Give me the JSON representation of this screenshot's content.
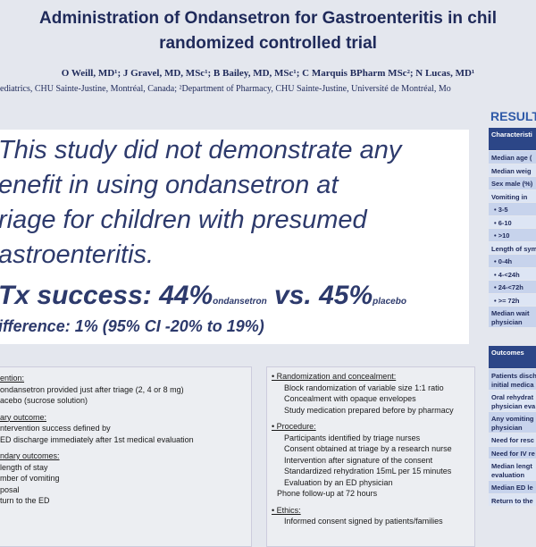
{
  "header": {
    "title_lines": [
      "Administration of Ondansetron for Gastroenteritis in chil",
      "randomized controlled trial"
    ],
    "authors": "O Weill, MD¹; J Gravel, MD, MSc¹; B Bailey, MD, MSc¹; C Marquis  BPharm MSc²; N Lucas, MD¹",
    "affiliations": "ediatrics, CHU Sainte-Justine, Montréal, Canada; ²Department of Pharmacy, CHU Sainte-Justine, Université de Montréal, Mo"
  },
  "conclusion": {
    "lines": [
      "This study did not demonstrate any",
      "enefit in using ondansetron at",
      "riage for children with presumed",
      "astroenteritis."
    ],
    "success": {
      "prefix": "Tx success: 44%",
      "sub1": "ondansetron",
      "mid": " vs. 45%",
      "sub2": "placebo"
    },
    "difference": "ifference: 1% (95% CI -20% to 19%)"
  },
  "methods_left": [
    {
      "text": "ention:",
      "kind": "heading"
    },
    {
      "text": "ondansetron provided just after triage (2, 4 or 8 mg)",
      "kind": "item"
    },
    {
      "text": "acebo (sucrose solution)",
      "kind": "item"
    },
    {
      "text": "ary outcome:",
      "kind": "heading"
    },
    {
      "text": "ntervention success defined by",
      "kind": "item"
    },
    {
      "text": "ED discharge immediately after 1st medical evaluation",
      "kind": "item"
    },
    {
      "text": "ndary outcomes:",
      "kind": "heading"
    },
    {
      "text": "length of stay",
      "kind": "item"
    },
    {
      "text": "mber of vomiting",
      "kind": "item"
    },
    {
      "text": "posal",
      "kind": "item"
    },
    {
      "text": "turn to the ED",
      "kind": "item"
    }
  ],
  "methods_middle": [
    {
      "text": "• Randomization and concealment:",
      "kind": "heading"
    },
    {
      "text": "Block randomization of variable size 1:1 ratio",
      "kind": "subitem"
    },
    {
      "text": "Concealment with opaque envelopes",
      "kind": "subitem"
    },
    {
      "text": "Study medication prepared before by pharmacy",
      "kind": "subitem"
    },
    {
      "text": "• Procedure:",
      "kind": "heading"
    },
    {
      "text": "Participants identified by triage nurses",
      "kind": "subitem"
    },
    {
      "text": "Consent obtained at triage by a research nurse",
      "kind": "subitem"
    },
    {
      "text": "Intervention after signature of the consent",
      "kind": "subitem"
    },
    {
      "text": "Standardized rehydration 15mL per 15 minutes",
      "kind": "subitem"
    },
    {
      "text": "Evaluation by an ED physician",
      "kind": "subitem"
    },
    {
      "text": "Phone follow-up at 72 hours",
      "kind": "item"
    },
    {
      "text": "• Ethics:",
      "kind": "heading"
    },
    {
      "text": "Informed consent signed by patients/families",
      "kind": "subitem"
    }
  ],
  "results": {
    "heading": "RESULT",
    "characteristics": [
      {
        "lines": [
          "Characteristi"
        ],
        "kind": "header"
      },
      {
        "lines": [
          "Median age ("
        ],
        "kind": "row"
      },
      {
        "lines": [
          "Median weig"
        ],
        "kind": "row"
      },
      {
        "lines": [
          "Sex male (%)"
        ],
        "kind": "row"
      },
      {
        "lines": [
          "Vomiting in"
        ],
        "kind": "row"
      },
      {
        "lines": [
          "• 3-5"
        ],
        "kind": "row"
      },
      {
        "lines": [
          "• 6-10"
        ],
        "kind": "row"
      },
      {
        "lines": [
          "• >10"
        ],
        "kind": "row"
      },
      {
        "lines": [
          "Length of sym"
        ],
        "kind": "row"
      },
      {
        "lines": [
          "• 0-4h"
        ],
        "kind": "row"
      },
      {
        "lines": [
          "• 4-<24h"
        ],
        "kind": "row"
      },
      {
        "lines": [
          "• 24-<72h"
        ],
        "kind": "row"
      },
      {
        "lines": [
          "• >= 72h"
        ],
        "kind": "row"
      },
      {
        "lines": [
          "Median wait",
          "physician"
        ],
        "kind": "row"
      }
    ],
    "outcomes": [
      {
        "lines": [
          "Outcomes"
        ],
        "kind": "header"
      },
      {
        "lines": [
          "Patients disch",
          "initial medica"
        ],
        "kind": "row"
      },
      {
        "lines": [
          "Oral rehydrat",
          "physician eva"
        ],
        "kind": "row"
      },
      {
        "lines": [
          "Any vomiting",
          "physician"
        ],
        "kind": "row"
      },
      {
        "lines": [
          "Need for resc"
        ],
        "kind": "row"
      },
      {
        "lines": [
          "Need for IV re"
        ],
        "kind": "row"
      },
      {
        "lines": [
          "Median lengt",
          "evaluation"
        ],
        "kind": "row"
      },
      {
        "lines": [
          "Median ED le"
        ],
        "kind": "row"
      },
      {
        "lines": [
          "Return to the"
        ],
        "kind": "row"
      }
    ]
  }
}
